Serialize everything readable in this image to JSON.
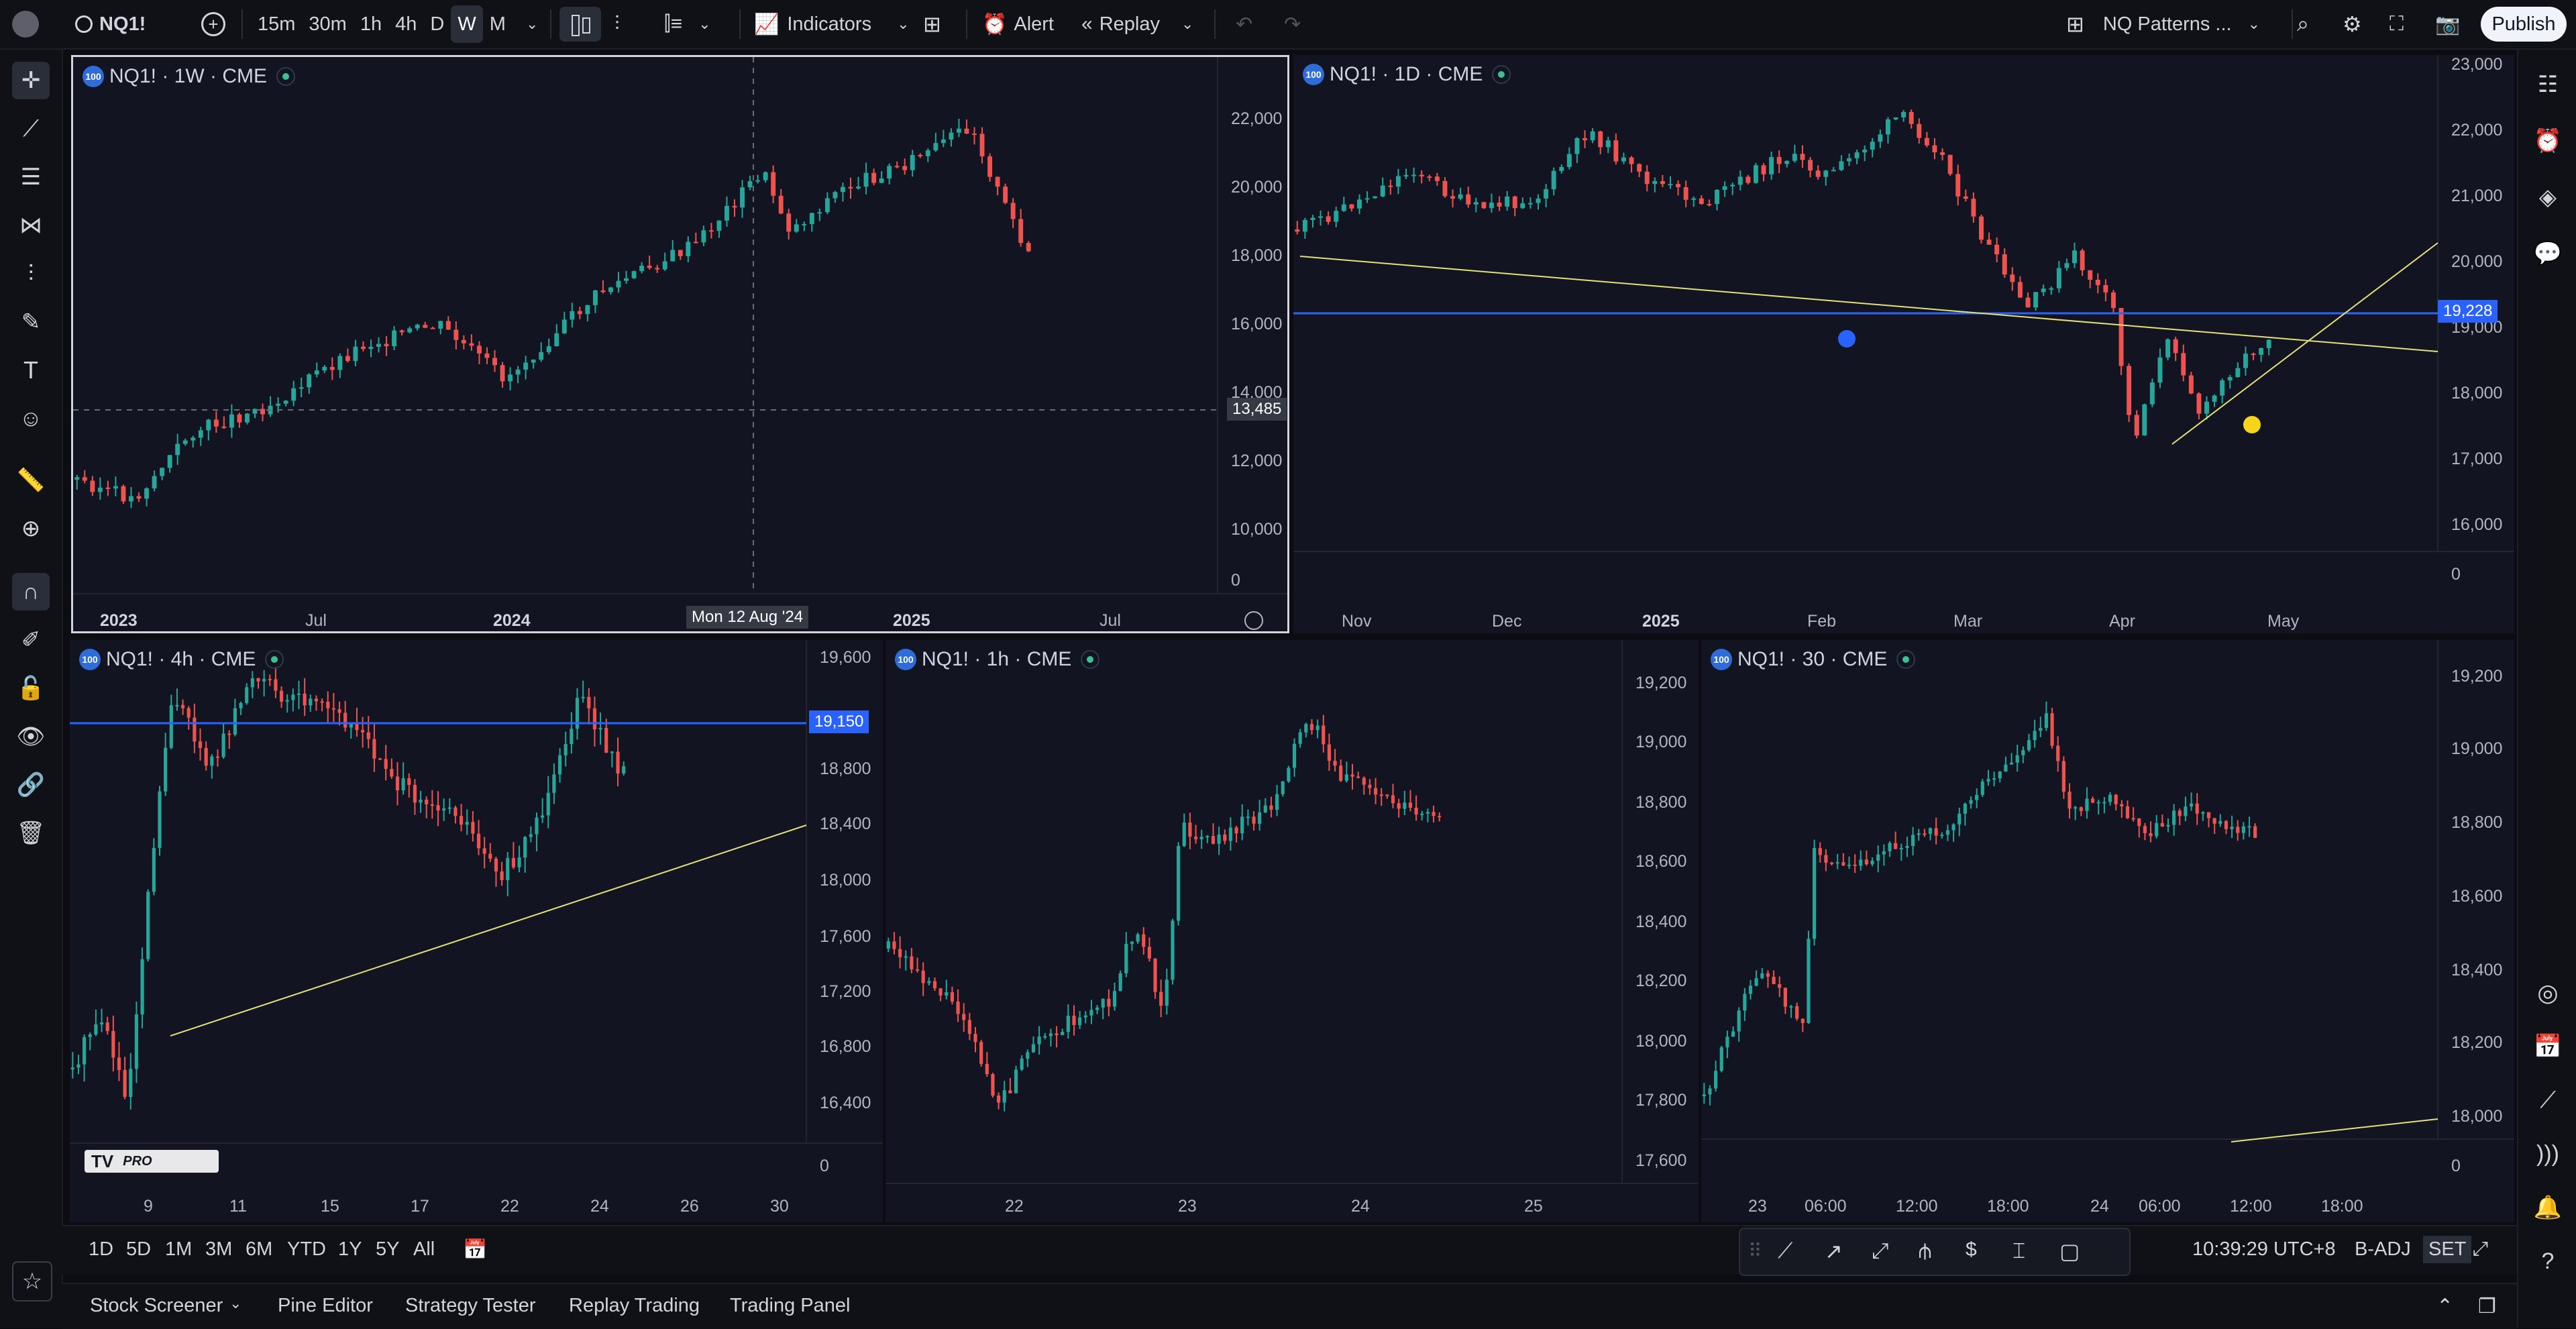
{
  "toolbar": {
    "symbol": "NQ1!",
    "intervals": [
      "15m",
      "30m",
      "1h",
      "4h",
      "D",
      "W",
      "M"
    ],
    "active_interval": "W",
    "indicators_label": "Indicators",
    "alert_label": "Alert",
    "replay_label": "Replay",
    "layout_name": "NQ Patterns ...",
    "publish_label": "Publish"
  },
  "panes": [
    {
      "id": "weekly",
      "title": "NQ1! · 1W · CME",
      "y_ticks": [
        "22,000",
        "20,000",
        "18,000",
        "16,000",
        "14,000",
        "12,000",
        "10,000",
        "0"
      ],
      "x_ticks": [
        {
          "label": "2023",
          "bold": true
        },
        {
          "label": "Jul",
          "bold": false
        },
        {
          "label": "2024",
          "bold": true
        },
        {
          "label": "2025",
          "bold": true
        },
        {
          "label": "Jul",
          "bold": false
        }
      ],
      "crosshair_price": "13,485",
      "crosshair_date": "Mon 12 Aug '24"
    },
    {
      "id": "daily",
      "title": "NQ1! · 1D · CME",
      "y_ticks": [
        "23,000",
        "22,000",
        "21,000",
        "20,000",
        "19,000",
        "18,000",
        "17,000",
        "16,000",
        "0"
      ],
      "x_ticks": [
        {
          "label": "Nov",
          "bold": false
        },
        {
          "label": "Dec",
          "bold": false
        },
        {
          "label": "2025",
          "bold": true
        },
        {
          "label": "Feb",
          "bold": false
        },
        {
          "label": "Mar",
          "bold": false
        },
        {
          "label": "Apr",
          "bold": false
        },
        {
          "label": "May",
          "bold": false
        }
      ],
      "horizontal_line_price": "19,228"
    },
    {
      "id": "h4",
      "title": "NQ1! · 4h · CME",
      "y_ticks": [
        "19,600",
        "18,800",
        "18,400",
        "18,000",
        "17,600",
        "17,200",
        "16,800",
        "16,400",
        "0"
      ],
      "x_ticks": [
        {
          "label": "9",
          "bold": false
        },
        {
          "label": "11",
          "bold": false
        },
        {
          "label": "15",
          "bold": false
        },
        {
          "label": "17",
          "bold": false
        },
        {
          "label": "22",
          "bold": false
        },
        {
          "label": "24",
          "bold": false
        },
        {
          "label": "26",
          "bold": false
        },
        {
          "label": "30",
          "bold": false
        }
      ],
      "horizontal_line_price": "19,150",
      "logo_text": "PRO"
    },
    {
      "id": "h1",
      "title": "NQ1! · 1h · CME",
      "y_ticks": [
        "19,200",
        "19,000",
        "18,800",
        "18,600",
        "18,400",
        "18,200",
        "18,000",
        "17,800",
        "17,600"
      ],
      "x_ticks": [
        {
          "label": "22",
          "bold": false
        },
        {
          "label": "23",
          "bold": false
        },
        {
          "label": "24",
          "bold": false
        },
        {
          "label": "25",
          "bold": false
        }
      ]
    },
    {
      "id": "m30",
      "title": "NQ1! · 30 · CME",
      "y_ticks": [
        "19,200",
        "19,000",
        "18,800",
        "18,600",
        "18,400",
        "18,200",
        "18,000",
        "0"
      ],
      "x_ticks": [
        {
          "label": "23",
          "bold": false
        },
        {
          "label": "06:00",
          "bold": false
        },
        {
          "label": "12:00",
          "bold": false
        },
        {
          "label": "18:00",
          "bold": false
        },
        {
          "label": "24",
          "bold": false
        },
        {
          "label": "06:00",
          "bold": false
        },
        {
          "label": "12:00",
          "bold": false
        },
        {
          "label": "18:00",
          "bold": false
        }
      ]
    }
  ],
  "range_buttons": [
    "1D",
    "5D",
    "1M",
    "3M",
    "6M",
    "YTD",
    "1Y",
    "5Y",
    "All"
  ],
  "status": {
    "time": "10:39:29 UTC+8",
    "adjust": "B-ADJ",
    "session": "SET"
  },
  "bottom_tabs": [
    "Stock Screener",
    "Pine Editor",
    "Strategy Tester",
    "Replay Trading",
    "Trading Panel"
  ],
  "colors": {
    "up": "#26a69a",
    "down": "#ef5350",
    "hline": "#2962ff",
    "trend": "#e6e07a"
  },
  "icons": {
    "left": [
      "crosshair-icon",
      "trendline-icon",
      "fib-icon",
      "pattern-icon",
      "forecast-icon",
      "brush-icon",
      "text-icon",
      "emoji-icon",
      "ruler-icon",
      "zoom-icon",
      "magnet-icon",
      "lock-draw-icon",
      "lock-icon",
      "eye-icon",
      "link-icon",
      "trash-icon",
      "star-icon"
    ],
    "right": [
      "watchlist-icon",
      "alarm-icon",
      "layers-icon",
      "chat-icon",
      "compass-icon",
      "calendar-icon",
      "ideas-icon",
      "stream-icon",
      "bell-icon",
      "help-icon"
    ]
  }
}
